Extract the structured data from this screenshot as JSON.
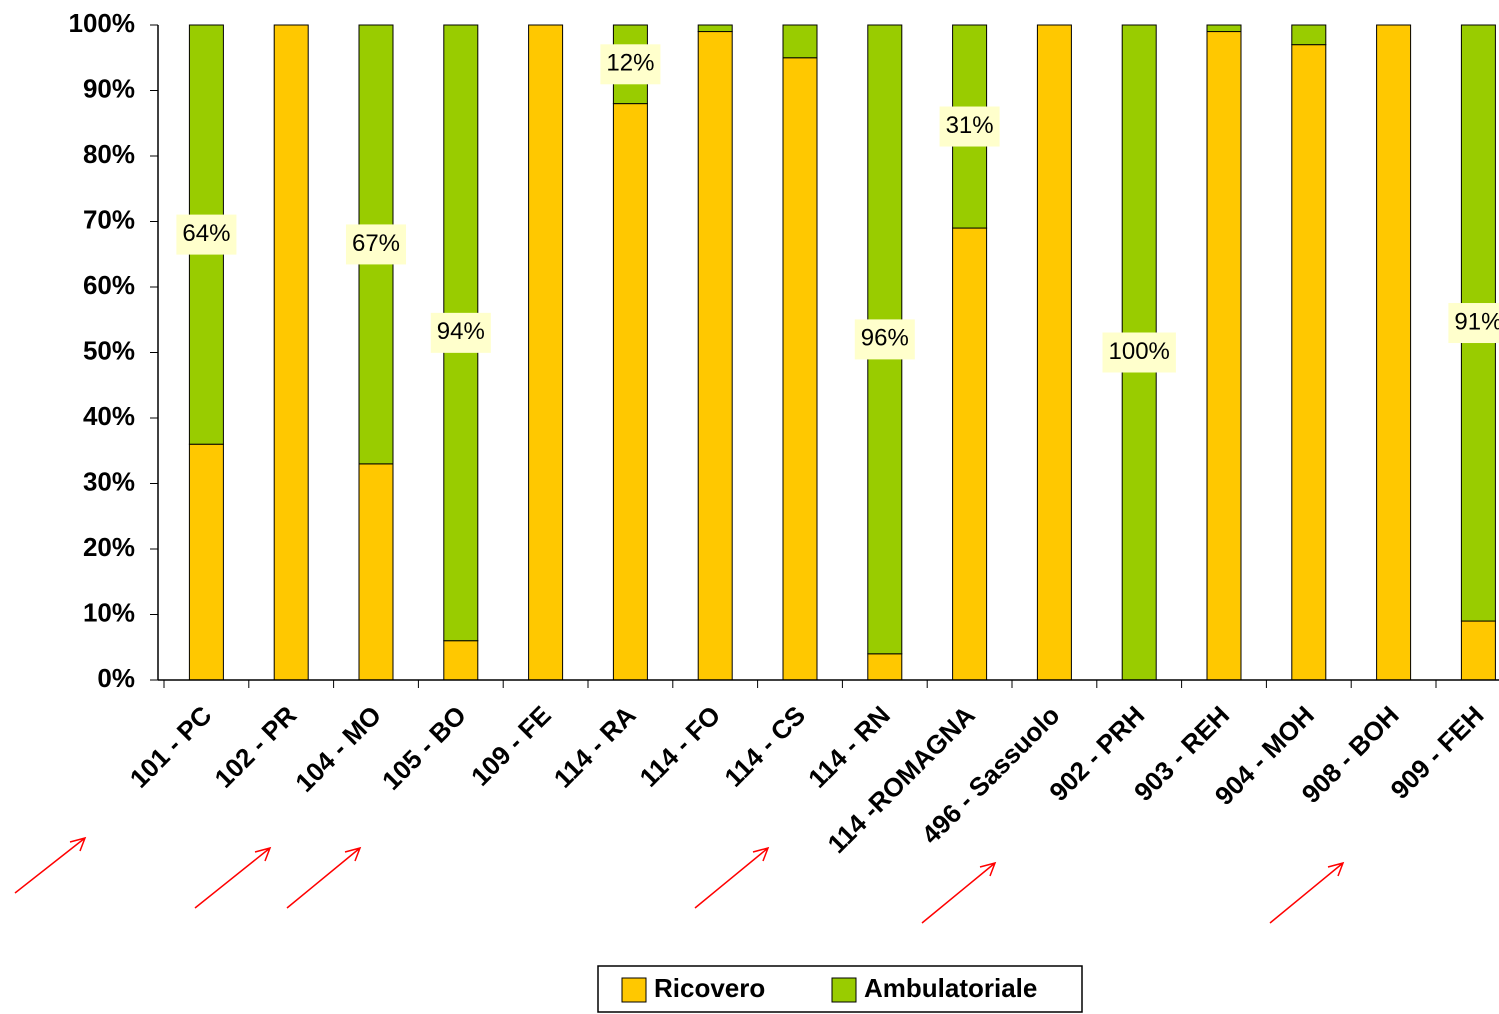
{
  "chart_data": {
    "type": "stacked-bar",
    "categories": [
      "101 - PC",
      "102 - PR",
      "104 - MO",
      "105 - BO",
      "109 - FE",
      "114 - RA",
      "114 - FO",
      "114 - CS",
      "114 - RN",
      "114 -ROMAGNA",
      "496 - Sassuolo",
      "902 - PRH",
      "903 - REH",
      "904 - MOH",
      "908 - BOH",
      "909 - FEH"
    ],
    "series": [
      {
        "name": "Ricovero",
        "color": "#ffc800",
        "values": [
          36,
          100,
          33,
          6,
          100,
          88,
          99,
          95,
          4,
          69,
          100,
          0,
          99,
          97,
          100,
          9
        ]
      },
      {
        "name": "Ambulatoriale",
        "color": "#99cc00",
        "values": [
          64,
          0,
          67,
          94,
          0,
          12,
          1,
          5,
          96,
          31,
          0,
          100,
          1,
          3,
          0,
          91
        ],
        "value_labels": [
          "64%",
          null,
          "67%",
          "94%",
          null,
          "12%",
          null,
          null,
          "96%",
          "31%",
          null,
          "100%",
          null,
          null,
          null,
          "91%"
        ]
      }
    ],
    "ylim": [
      0,
      100
    ],
    "yticks": [
      {
        "value": 0,
        "label": "0%"
      },
      {
        "value": 10,
        "label": "10%"
      },
      {
        "value": 20,
        "label": "20%"
      },
      {
        "value": 30,
        "label": "30%"
      },
      {
        "value": 40,
        "label": "40%"
      },
      {
        "value": 50,
        "label": "50%"
      },
      {
        "value": 60,
        "label": "60%"
      },
      {
        "value": 70,
        "label": "70%"
      },
      {
        "value": 80,
        "label": "80%"
      },
      {
        "value": 90,
        "label": "90%"
      },
      {
        "value": 100,
        "label": "100%"
      }
    ],
    "legend": "bottom"
  }
}
